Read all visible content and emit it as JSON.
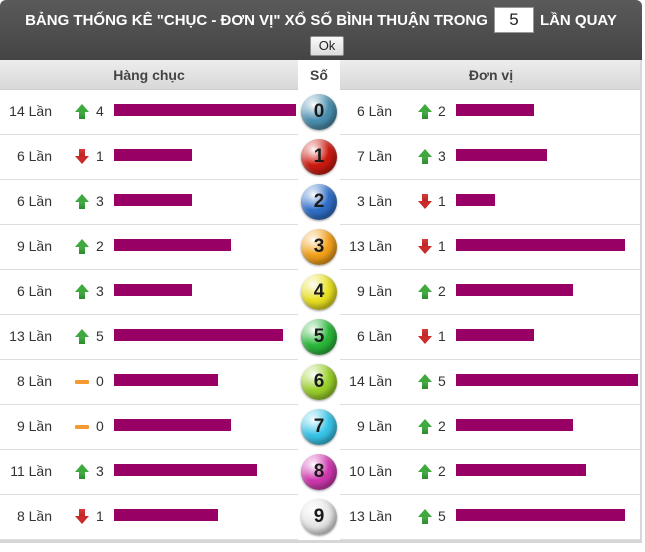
{
  "header": {
    "title_before": "BẢNG THỐNG KÊ \"CHỤC - ĐƠN VỊ\" XỔ SỐ BÌNH THUẬN TRONG",
    "input_value": "5",
    "title_after": "LẦN QUAY",
    "ok_label": "Ok"
  },
  "columns": {
    "chuc": "Hàng chục",
    "so": "Số",
    "donvi": "Đơn vị"
  },
  "colors": {
    "bar": "#990066",
    "up": "#3fa93f",
    "down": "#c92a2a",
    "same": "#f59a30"
  },
  "rows": [
    {
      "digit": "0",
      "ball_color": "#4a90b0",
      "chuc_count": "14 Lần",
      "chuc_trend": "up",
      "chuc_delta": "4",
      "chuc_value": 14,
      "donvi_count": "6 Lần",
      "donvi_trend": "up",
      "donvi_delta": "2",
      "donvi_value": 6
    },
    {
      "digit": "1",
      "ball_color": "#cc1a10",
      "chuc_count": "6 Lần",
      "chuc_trend": "down",
      "chuc_delta": "1",
      "chuc_value": 6,
      "donvi_count": "7 Lần",
      "donvi_trend": "up",
      "donvi_delta": "3",
      "donvi_value": 7
    },
    {
      "digit": "2",
      "ball_color": "#2f6fc8",
      "chuc_count": "6 Lần",
      "chuc_trend": "up",
      "chuc_delta": "3",
      "chuc_value": 6,
      "donvi_count": "3 Lần",
      "donvi_trend": "down",
      "donvi_delta": "1",
      "donvi_value": 3
    },
    {
      "digit": "3",
      "ball_color": "#f2a018",
      "chuc_count": "9 Lần",
      "chuc_trend": "up",
      "chuc_delta": "2",
      "chuc_value": 9,
      "donvi_count": "13 Lần",
      "donvi_trend": "down",
      "donvi_delta": "1",
      "donvi_value": 13
    },
    {
      "digit": "4",
      "ball_color": "#e8e020",
      "chuc_count": "6 Lần",
      "chuc_trend": "up",
      "chuc_delta": "3",
      "chuc_value": 6,
      "donvi_count": "9 Lần",
      "donvi_trend": "up",
      "donvi_delta": "2",
      "donvi_value": 9
    },
    {
      "digit": "5",
      "ball_color": "#2ab83a",
      "chuc_count": "13 Lần",
      "chuc_trend": "up",
      "chuc_delta": "5",
      "chuc_value": 13,
      "donvi_count": "6 Lần",
      "donvi_trend": "down",
      "donvi_delta": "1",
      "donvi_value": 6
    },
    {
      "digit": "6",
      "ball_color": "#9ad02a",
      "chuc_count": "8 Lần",
      "chuc_trend": "same",
      "chuc_delta": "0",
      "chuc_value": 8,
      "donvi_count": "14 Lần",
      "donvi_trend": "up",
      "donvi_delta": "5",
      "donvi_value": 14
    },
    {
      "digit": "7",
      "ball_color": "#38c4e8",
      "chuc_count": "9 Lần",
      "chuc_trend": "same",
      "chuc_delta": "0",
      "chuc_value": 9,
      "donvi_count": "9 Lần",
      "donvi_trend": "up",
      "donvi_delta": "2",
      "donvi_value": 9
    },
    {
      "digit": "8",
      "ball_color": "#d038b0",
      "chuc_count": "11 Lần",
      "chuc_trend": "up",
      "chuc_delta": "3",
      "chuc_value": 11,
      "donvi_count": "10 Lần",
      "donvi_trend": "up",
      "donvi_delta": "2",
      "donvi_value": 10
    },
    {
      "digit": "9",
      "ball_color": "#e6e6e6",
      "chuc_count": "8 Lần",
      "chuc_trend": "down",
      "chuc_delta": "1",
      "chuc_value": 8,
      "donvi_count": "13 Lần",
      "donvi_trend": "up",
      "donvi_delta": "5",
      "donvi_value": 13
    }
  ]
}
